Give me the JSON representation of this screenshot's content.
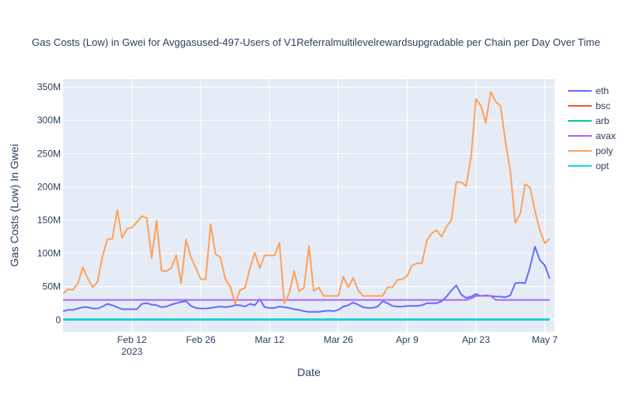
{
  "chart_data": {
    "type": "line",
    "title": "Gas Costs (Low) in Gwei for Avggasused-497-Users of V1Referralmultilevelrewardsupgradable per Chain per Day Over Time",
    "xlabel": "Date",
    "ylabel": "Gas Costs (Low) In Gwei",
    "x_start": "2023-01-29",
    "x_end": "2023-05-09",
    "xlim": [
      "2023-01-29",
      "2023-05-09"
    ],
    "ylim": [
      -18,
      362
    ],
    "x_ticks": [
      {
        "date": "2023-02-12",
        "label": "Feb 12",
        "sublabel": "2023"
      },
      {
        "date": "2023-02-26",
        "label": "Feb 26",
        "sublabel": ""
      },
      {
        "date": "2023-03-12",
        "label": "Mar 12",
        "sublabel": ""
      },
      {
        "date": "2023-03-26",
        "label": "Mar 26",
        "sublabel": ""
      },
      {
        "date": "2023-04-09",
        "label": "Apr 9",
        "sublabel": ""
      },
      {
        "date": "2023-04-23",
        "label": "Apr 23",
        "sublabel": ""
      },
      {
        "date": "2023-05-07",
        "label": "May 7",
        "sublabel": ""
      }
    ],
    "y_ticks": [
      {
        "value": 0,
        "label": "0"
      },
      {
        "value": 50,
        "label": "50M"
      },
      {
        "value": 100,
        "label": "100M"
      },
      {
        "value": 150,
        "label": "150M"
      },
      {
        "value": 200,
        "label": "200M"
      },
      {
        "value": 250,
        "label": "250M"
      },
      {
        "value": 300,
        "label": "300M"
      },
      {
        "value": 350,
        "label": "350M"
      }
    ],
    "y_unit_note": "values in millions of Gwei",
    "grid": true,
    "legend_position": "right",
    "colors": {
      "plot_bg": "#e5ecf6",
      "grid": "#ffffff",
      "text": "#2a3f5f"
    },
    "series": [
      {
        "name": "eth",
        "color": "#636efa",
        "values": [
          13,
          15,
          15,
          17,
          19,
          19,
          17,
          17,
          20,
          24,
          22,
          19,
          16,
          16,
          16,
          16,
          24,
          25,
          23,
          22,
          19,
          20,
          23,
          25,
          27,
          28,
          21,
          18,
          17,
          17,
          18,
          19,
          20,
          19,
          20,
          22,
          22,
          20,
          24,
          22,
          31,
          19,
          18,
          18,
          20,
          19,
          18,
          16,
          15,
          13,
          12,
          12,
          12,
          13,
          14,
          13,
          15,
          20,
          22,
          26,
          23,
          19,
          18,
          18,
          20,
          28,
          25,
          21,
          20,
          20,
          21,
          21,
          21,
          22,
          25,
          25,
          25,
          28,
          35,
          44,
          52,
          38,
          33,
          35,
          39,
          36,
          37,
          36,
          35,
          35,
          34,
          37,
          55,
          56,
          55,
          79,
          110,
          90,
          82,
          62
        ]
      },
      {
        "name": "bsc",
        "color": "#ef553b",
        "values": [
          0,
          0,
          0,
          0,
          0,
          0,
          0,
          0,
          0,
          0,
          0,
          0,
          0,
          0,
          0,
          0,
          0,
          0,
          0,
          0,
          0,
          0,
          0,
          0,
          0,
          0,
          0,
          0,
          0,
          0,
          0,
          0,
          0,
          0,
          0,
          0,
          0,
          0,
          0,
          0,
          0,
          0,
          0,
          0,
          0,
          0,
          0,
          0,
          0,
          0,
          0,
          0,
          0,
          0,
          0,
          0,
          0,
          0,
          0,
          0,
          0,
          0,
          0,
          0,
          0,
          0,
          0,
          0,
          0,
          0,
          0,
          0,
          0,
          0,
          0,
          0,
          0,
          0,
          0,
          0,
          0,
          0,
          0,
          0,
          0,
          0,
          0,
          0,
          0,
          0,
          0,
          0,
          0,
          0,
          0,
          0,
          0,
          0,
          0,
          0
        ]
      },
      {
        "name": "arb",
        "color": "#00cc96",
        "values": [
          1,
          1,
          1,
          1,
          1,
          1,
          1,
          1,
          1,
          1,
          1,
          1,
          1,
          1,
          1,
          1,
          1,
          1,
          1,
          1,
          1,
          1,
          1,
          1,
          1,
          1,
          1,
          1,
          1,
          1,
          1,
          1,
          1,
          1,
          1,
          1,
          1,
          1,
          1,
          1,
          1,
          1,
          1,
          1,
          1,
          1,
          1,
          1,
          1,
          1,
          1,
          1,
          1,
          1,
          1,
          1,
          1,
          1,
          1,
          1,
          1,
          1,
          1,
          1,
          1,
          1,
          1,
          1,
          1,
          1,
          1,
          1,
          1,
          1,
          1,
          1,
          1,
          1,
          1,
          1,
          1,
          1,
          1,
          1,
          1,
          1,
          1,
          1,
          1,
          1,
          1,
          1,
          1,
          1,
          1,
          1,
          1,
          1,
          1,
          1
        ]
      },
      {
        "name": "avax",
        "color": "#ab63fa",
        "values": [
          30,
          30,
          30,
          30,
          30,
          30,
          30,
          30,
          30,
          30,
          30,
          30,
          30,
          30,
          30,
          30,
          30,
          30,
          30,
          30,
          30,
          30,
          30,
          30,
          30,
          30,
          30,
          30,
          30,
          30,
          30,
          30,
          30,
          30,
          30,
          30,
          30,
          30,
          30,
          30,
          30,
          30,
          30,
          30,
          30,
          30,
          30,
          30,
          30,
          30,
          30,
          30,
          30,
          30,
          30,
          30,
          30,
          30,
          30,
          30,
          30,
          30,
          30,
          30,
          30,
          30,
          30,
          30,
          30,
          30,
          30,
          30,
          30,
          30,
          30,
          30,
          30,
          30,
          30,
          30,
          30,
          30,
          30,
          32,
          36,
          36,
          36,
          36,
          30,
          30,
          30,
          30,
          30,
          30,
          30,
          30,
          30,
          30,
          30,
          30
        ]
      },
      {
        "name": "poly",
        "color": "#ffa15a",
        "values": [
          40,
          46,
          45,
          55,
          79,
          62,
          49,
          57,
          96,
          121,
          122,
          165,
          123,
          137,
          139,
          147,
          156,
          153,
          93,
          149,
          74,
          73,
          78,
          97,
          55,
          121,
          94,
          78,
          61,
          61,
          144,
          99,
          94,
          61,
          50,
          24,
          45,
          48,
          78,
          101,
          78,
          97,
          97,
          97,
          116,
          25,
          40,
          73,
          43,
          48,
          111,
          43,
          49,
          36,
          36,
          36,
          36,
          65,
          49,
          63,
          45,
          36,
          36,
          36,
          36,
          36,
          49,
          49,
          60,
          61,
          66,
          82,
          85,
          85,
          119,
          130,
          135,
          125,
          140,
          150,
          207,
          207,
          201,
          245,
          332,
          322,
          296,
          343,
          328,
          321,
          268,
          223,
          146,
          159,
          204,
          199,
          164,
          135,
          115,
          122
        ]
      },
      {
        "name": "opt",
        "color": "#19d3f3",
        "values": [
          0,
          0,
          0,
          0,
          0,
          0,
          0,
          0,
          0,
          0,
          0,
          0,
          0,
          0,
          0,
          0,
          0,
          0,
          0,
          0,
          0,
          0,
          0,
          0,
          0,
          0,
          0,
          0,
          0,
          0,
          0,
          0,
          0,
          0,
          0,
          0,
          0,
          0,
          0,
          0,
          0,
          0,
          0,
          0,
          0,
          0,
          0,
          0,
          0,
          0,
          0,
          0,
          0,
          0,
          0,
          0,
          0,
          0,
          0,
          0,
          0,
          0,
          0,
          0,
          0,
          0,
          0,
          0,
          0,
          0,
          0,
          0,
          0,
          0,
          0,
          0,
          0,
          0,
          0,
          0,
          0,
          0,
          0,
          0,
          0,
          0,
          0,
          0,
          0,
          0,
          0,
          0,
          0,
          0,
          0,
          0,
          0,
          0,
          0,
          0
        ]
      }
    ]
  }
}
